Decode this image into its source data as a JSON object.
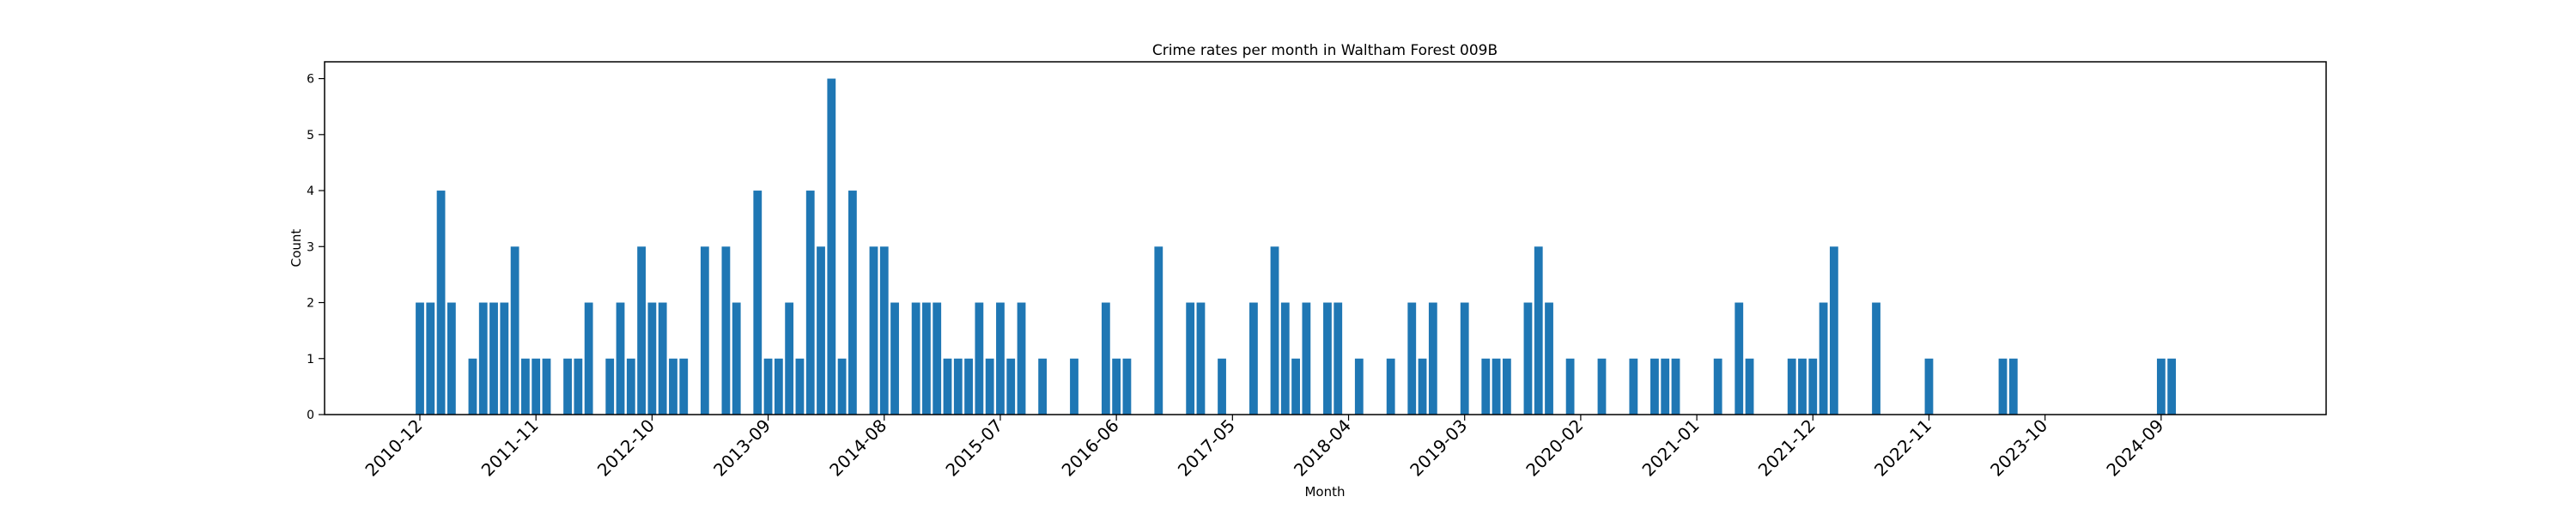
{
  "chart_data": {
    "type": "bar",
    "title": "Crime rates per month in Waltham Forest 009B",
    "xlabel": "Month",
    "ylabel": "Count",
    "ylim": [
      0,
      6.3
    ],
    "yticks": [
      0,
      1,
      2,
      3,
      4,
      5,
      6
    ],
    "xticks": [
      "2010-12",
      "2011-11",
      "2012-10",
      "2013-09",
      "2014-08",
      "2015-07",
      "2016-06",
      "2017-05",
      "2018-04",
      "2019-03",
      "2020-02",
      "2021-01",
      "2021-12",
      "2022-11",
      "2023-10",
      "2024-09"
    ],
    "bar_color": "#1f77b4",
    "grid": false,
    "series": [
      {
        "x": [
          "2010-12",
          "2011-01",
          "2011-02",
          "2011-03",
          "2011-05",
          "2011-06",
          "2011-07",
          "2011-08",
          "2011-09",
          "2011-10",
          "2011-11",
          "2011-12",
          "2012-02",
          "2012-03",
          "2012-04",
          "2012-06",
          "2012-07",
          "2012-08",
          "2012-09",
          "2012-10",
          "2012-11",
          "2012-12",
          "2013-01",
          "2013-03",
          "2013-05",
          "2013-06",
          "2013-08",
          "2013-09",
          "2013-10",
          "2013-11",
          "2013-12",
          "2014-01",
          "2014-02",
          "2014-03",
          "2014-04",
          "2014-05",
          "2014-07",
          "2014-08",
          "2014-09",
          "2014-11",
          "2014-12",
          "2015-01",
          "2015-02",
          "2015-03",
          "2015-04",
          "2015-05",
          "2015-06",
          "2015-07",
          "2015-08",
          "2015-09",
          "2015-11",
          "2016-02",
          "2016-05",
          "2016-06",
          "2016-07",
          "2016-10",
          "2017-01",
          "2017-02",
          "2017-04",
          "2017-07",
          "2017-09",
          "2017-10",
          "2017-11",
          "2017-12",
          "2018-02",
          "2018-03",
          "2018-05",
          "2018-08",
          "2018-10",
          "2018-11",
          "2018-12",
          "2019-03",
          "2019-05",
          "2019-06",
          "2019-07",
          "2019-09",
          "2019-10",
          "2019-11",
          "2020-01",
          "2020-04",
          "2020-07",
          "2020-09",
          "2020-10",
          "2020-11",
          "2021-03",
          "2021-05",
          "2021-06",
          "2021-10",
          "2021-11",
          "2021-12",
          "2022-01",
          "2022-02",
          "2022-06",
          "2022-11",
          "2023-06",
          "2023-07",
          "2024-09",
          "2024-10"
        ],
        "values": [
          2,
          2,
          4,
          2,
          1,
          2,
          2,
          2,
          3,
          1,
          1,
          1,
          1,
          1,
          2,
          1,
          2,
          1,
          3,
          2,
          2,
          1,
          1,
          3,
          3,
          2,
          4,
          1,
          1,
          2,
          1,
          4,
          3,
          6,
          1,
          4,
          3,
          3,
          2,
          2,
          2,
          2,
          1,
          1,
          1,
          2,
          1,
          2,
          1,
          2,
          1,
          1,
          2,
          1,
          1,
          3,
          2,
          2,
          1,
          2,
          3,
          2,
          1,
          2,
          2,
          2,
          1,
          1,
          2,
          1,
          2,
          2,
          1,
          1,
          1,
          2,
          3,
          2,
          1,
          1,
          1,
          1,
          1,
          1,
          1,
          2,
          1,
          1,
          1,
          1,
          2,
          3,
          2,
          1,
          1,
          1,
          1,
          1
        ]
      }
    ]
  }
}
